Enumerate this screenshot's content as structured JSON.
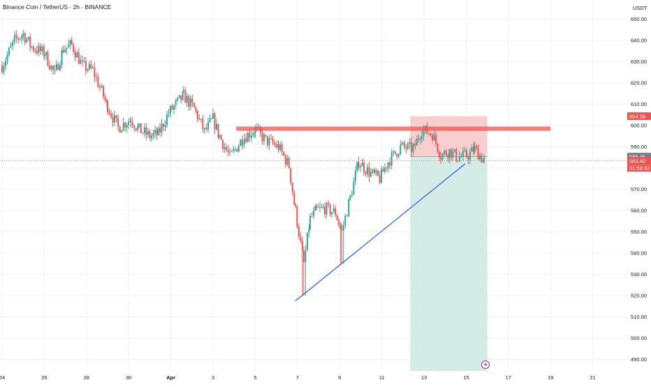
{
  "header": {
    "symbol_title": "Binance Coin / TetherUS · 2h · BINANCE",
    "currency": "USDT"
  },
  "colors": {
    "up": "#26a69a",
    "down": "#ef5350",
    "resistance_zone": "#ef5350",
    "trendline": "#2962ff",
    "stop_zone": "#f7c5c7",
    "target_zone": "#cfe9e3",
    "grid": "#f0f3fa",
    "axis_text": "#131722",
    "current_price_tag": "#ef5350",
    "entry_tag": "#787b86"
  },
  "icons": {
    "replay": "lightning-circle-icon"
  },
  "chart_data": {
    "type": "candlestick",
    "title": "Binance Coin / TetherUS · 2h · BINANCE",
    "ylabel": "USDT",
    "ylim": [
      484,
      653
    ],
    "y_ticks": [
      490,
      500,
      510,
      520,
      530,
      540,
      550,
      560,
      570,
      580,
      590,
      600,
      610,
      620,
      630,
      640,
      650
    ],
    "x_range": [
      23.9,
      23.1
    ],
    "x_ticks": [
      {
        "x": 24,
        "label": "24"
      },
      {
        "x": 26,
        "label": "26"
      },
      {
        "x": 28,
        "label": "28"
      },
      {
        "x": 30,
        "label": "30"
      },
      {
        "x": 32,
        "label": "Apr"
      },
      {
        "x": 34,
        "label": "3"
      },
      {
        "x": 36,
        "label": "5"
      },
      {
        "x": 38,
        "label": "7"
      },
      {
        "x": 40,
        "label": "9"
      },
      {
        "x": 42,
        "label": "11"
      },
      {
        "x": 44,
        "label": "13"
      },
      {
        "x": 46,
        "label": "15"
      },
      {
        "x": 48,
        "label": "17"
      },
      {
        "x": 50,
        "label": "19"
      },
      {
        "x": 52,
        "label": "21"
      }
    ],
    "anchor_closes": [
      [
        24.0,
        628
      ],
      [
        24.6,
        640
      ],
      [
        25.0,
        643
      ],
      [
        25.4,
        637
      ],
      [
        26.0,
        634
      ],
      [
        26.5,
        624
      ],
      [
        26.9,
        636
      ],
      [
        27.3,
        638
      ],
      [
        27.8,
        628
      ],
      [
        28.3,
        626
      ],
      [
        29.0,
        609
      ],
      [
        29.5,
        599
      ],
      [
        30.1,
        603
      ],
      [
        30.5,
        598
      ],
      [
        31.0,
        595
      ],
      [
        31.4,
        596
      ],
      [
        31.9,
        606
      ],
      [
        32.6,
        614
      ],
      [
        33.1,
        608
      ],
      [
        33.6,
        597
      ],
      [
        34.0,
        603
      ],
      [
        34.3,
        595
      ],
      [
        34.8,
        585
      ],
      [
        35.4,
        594
      ],
      [
        36.0,
        598
      ],
      [
        36.5,
        593
      ],
      [
        37.1,
        590
      ],
      [
        37.6,
        581
      ],
      [
        37.9,
        560
      ],
      [
        38.3,
        535
      ],
      [
        38.6,
        556
      ],
      [
        38.9,
        560
      ],
      [
        39.3,
        561
      ],
      [
        39.8,
        559
      ],
      [
        40.1,
        550
      ],
      [
        40.5,
        566
      ],
      [
        40.9,
        583
      ],
      [
        41.4,
        578
      ],
      [
        41.9,
        575
      ],
      [
        42.3,
        583
      ],
      [
        42.9,
        590
      ],
      [
        43.5,
        589
      ],
      [
        43.9,
        598
      ],
      [
        44.4,
        596
      ],
      [
        44.8,
        586
      ],
      [
        45.2,
        588
      ],
      [
        45.6,
        585
      ],
      [
        46.1,
        586
      ],
      [
        46.4,
        589
      ],
      [
        46.85,
        583.4
      ]
    ],
    "resistance_zone": {
      "x_start": 35.1,
      "x_end": 50.0,
      "y_low": 597.5,
      "y_high": 599.5
    },
    "trendline": {
      "x1": 37.9,
      "y1": 517.5,
      "x2": 45.95,
      "y2": 582
    },
    "position": {
      "x_start": 43.35,
      "x_end": 47.0,
      "entry": 585.36,
      "stop": 604.39,
      "target": 484
    },
    "current_price": 583.4,
    "entry_label": "585.36",
    "stop_label": "604.39",
    "current_price_label": "583.40",
    "countdown": "01:59:33"
  }
}
